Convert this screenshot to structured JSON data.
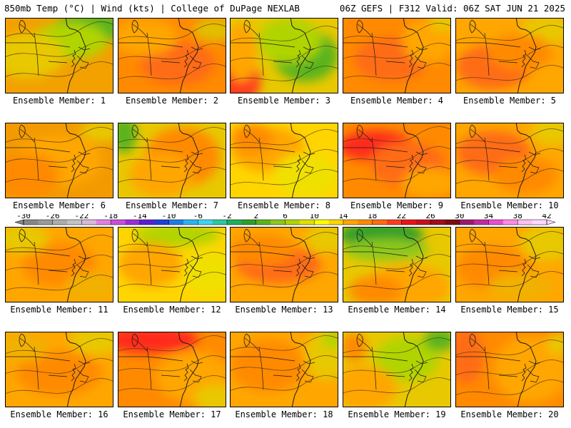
{
  "header": {
    "left": "850mb Temp (°C) | Wind (kts) | College of DuPage NEXLAB",
    "right": "06Z GEFS | F312 Valid: 06Z SAT JUN 21 2025"
  },
  "member_label_prefix": "Ensemble Member: ",
  "members": [
    {
      "label": "Ensemble Member: 1",
      "base": "#f2a100",
      "blobs": [
        [
          "#5ab41e",
          0.78,
          0.12,
          0.32,
          0.22
        ],
        [
          "#b0d400",
          0.6,
          0.3,
          0.35,
          0.25
        ],
        [
          "#e8c800",
          0.2,
          0.5,
          0.35,
          0.3
        ]
      ]
    },
    {
      "label": "Ensemble Member: 2",
      "base": "#ff8a00",
      "blobs": [
        [
          "#ff6c12",
          0.55,
          0.6,
          0.35,
          0.3
        ],
        [
          "#ffa600",
          0.25,
          0.25,
          0.3,
          0.25
        ],
        [
          "#e0c000",
          0.9,
          0.15,
          0.2,
          0.15
        ]
      ]
    },
    {
      "label": "Ensemble Member: 3",
      "base": "#e8c800",
      "blobs": [
        [
          "#5ab41e",
          0.7,
          0.5,
          0.3,
          0.35
        ],
        [
          "#b0d400",
          0.55,
          0.3,
          0.3,
          0.3
        ],
        [
          "#ff3d1e",
          0.08,
          0.85,
          0.2,
          0.3
        ],
        [
          "#ffa600",
          0.1,
          0.45,
          0.15,
          0.4
        ]
      ]
    },
    {
      "label": "Ensemble Member: 4",
      "base": "#ff8a00",
      "blobs": [
        [
          "#ff6c12",
          0.45,
          0.55,
          0.35,
          0.3
        ],
        [
          "#ffa600",
          0.8,
          0.3,
          0.25,
          0.3
        ],
        [
          "#e8c800",
          0.95,
          0.05,
          0.15,
          0.12
        ]
      ]
    },
    {
      "label": "Ensemble Member: 5",
      "base": "#ffa600",
      "blobs": [
        [
          "#ff6c12",
          0.35,
          0.65,
          0.35,
          0.3
        ],
        [
          "#e8c800",
          0.85,
          0.15,
          0.25,
          0.2
        ],
        [
          "#ff8a00",
          0.6,
          0.45,
          0.3,
          0.25
        ]
      ]
    },
    {
      "label": "Ensemble Member: 6",
      "base": "#f29a00",
      "blobs": [
        [
          "#ffa600",
          0.5,
          0.5,
          0.4,
          0.35
        ],
        [
          "#e8c800",
          0.9,
          0.1,
          0.2,
          0.15
        ],
        [
          "#ff8a00",
          0.2,
          0.7,
          0.3,
          0.3
        ]
      ]
    },
    {
      "label": "Ensemble Member: 7",
      "base": "#e8c800",
      "blobs": [
        [
          "#5ab41e",
          0.05,
          0.15,
          0.12,
          0.25
        ],
        [
          "#ff8a00",
          0.6,
          0.45,
          0.35,
          0.4
        ],
        [
          "#ffa600",
          0.4,
          0.7,
          0.3,
          0.3
        ]
      ]
    },
    {
      "label": "Ensemble Member: 8",
      "base": "#ffd500",
      "blobs": [
        [
          "#ffa600",
          0.35,
          0.35,
          0.35,
          0.3
        ],
        [
          "#f0e000",
          0.7,
          0.7,
          0.3,
          0.3
        ],
        [
          "#ff8a00",
          0.2,
          0.2,
          0.2,
          0.2
        ]
      ]
    },
    {
      "label": "Ensemble Member: 9",
      "base": "#ff8a00",
      "blobs": [
        [
          "#ff2a1a",
          0.3,
          0.3,
          0.35,
          0.2
        ],
        [
          "#ff6c12",
          0.6,
          0.55,
          0.35,
          0.3
        ],
        [
          "#ffa600",
          0.8,
          0.8,
          0.25,
          0.2
        ]
      ]
    },
    {
      "label": "Ensemble Member: 10",
      "base": "#ffa600",
      "blobs": [
        [
          "#ff6c12",
          0.35,
          0.4,
          0.35,
          0.3
        ],
        [
          "#e8c800",
          0.9,
          0.1,
          0.2,
          0.2
        ],
        [
          "#ff8a00",
          0.65,
          0.7,
          0.3,
          0.25
        ]
      ]
    },
    {
      "label": "Ensemble Member: 11",
      "base": "#ffa600",
      "blobs": [
        [
          "#ff8a00",
          0.5,
          0.5,
          0.35,
          0.3
        ],
        [
          "#e8c800",
          0.15,
          0.15,
          0.25,
          0.2
        ],
        [
          "#f2b000",
          0.8,
          0.8,
          0.25,
          0.2
        ]
      ]
    },
    {
      "label": "Ensemble Member: 12",
      "base": "#ffd500",
      "blobs": [
        [
          "#b0d400",
          0.55,
          0.1,
          0.4,
          0.15
        ],
        [
          "#ffa600",
          0.3,
          0.5,
          0.3,
          0.3
        ],
        [
          "#f0e000",
          0.85,
          0.6,
          0.25,
          0.3
        ]
      ]
    },
    {
      "label": "Ensemble Member: 13",
      "base": "#ffa600",
      "blobs": [
        [
          "#ff6c12",
          0.45,
          0.5,
          0.4,
          0.25
        ],
        [
          "#e8c800",
          0.9,
          0.15,
          0.2,
          0.2
        ],
        [
          "#ff8a00",
          0.3,
          0.3,
          0.3,
          0.2
        ]
      ]
    },
    {
      "label": "Ensemble Member: 14",
      "base": "#e8c800",
      "blobs": [
        [
          "#2f9e2a",
          0.35,
          0.1,
          0.4,
          0.18
        ],
        [
          "#8cc81e",
          0.4,
          0.3,
          0.4,
          0.15
        ],
        [
          "#ffa600",
          0.6,
          0.8,
          0.4,
          0.3
        ],
        [
          "#ff8a00",
          0.3,
          0.85,
          0.25,
          0.2
        ]
      ]
    },
    {
      "label": "Ensemble Member: 15",
      "base": "#ffa600",
      "blobs": [
        [
          "#e8c800",
          0.85,
          0.2,
          0.25,
          0.25
        ],
        [
          "#ff8a00",
          0.35,
          0.55,
          0.35,
          0.3
        ],
        [
          "#f2b000",
          0.6,
          0.8,
          0.3,
          0.2
        ]
      ]
    },
    {
      "label": "Ensemble Member: 16",
      "base": "#ffa600",
      "blobs": [
        [
          "#ff8a00",
          0.5,
          0.55,
          0.4,
          0.3
        ],
        [
          "#e8c800",
          0.85,
          0.1,
          0.25,
          0.2
        ],
        [
          "#f2b000",
          0.15,
          0.2,
          0.25,
          0.2
        ]
      ]
    },
    {
      "label": "Ensemble Member: 17",
      "base": "#ff8a00",
      "blobs": [
        [
          "#ff2a1a",
          0.3,
          0.1,
          0.45,
          0.18
        ],
        [
          "#ffa600",
          0.7,
          0.6,
          0.35,
          0.35
        ],
        [
          "#e8c800",
          0.9,
          0.9,
          0.2,
          0.2
        ]
      ]
    },
    {
      "label": "Ensemble Member: 18",
      "base": "#ffa600",
      "blobs": [
        [
          "#ff8a00",
          0.35,
          0.45,
          0.35,
          0.35
        ],
        [
          "#e8c800",
          0.9,
          0.3,
          0.2,
          0.35
        ],
        [
          "#b0d400",
          0.95,
          0.1,
          0.1,
          0.12
        ]
      ]
    },
    {
      "label": "Ensemble Member: 19",
      "base": "#e8c800",
      "blobs": [
        [
          "#b0d400",
          0.6,
          0.35,
          0.3,
          0.3
        ],
        [
          "#5ab41e",
          0.9,
          0.1,
          0.15,
          0.15
        ],
        [
          "#ffa600",
          0.2,
          0.75,
          0.3,
          0.3
        ],
        [
          "#ff8a00",
          0.1,
          0.2,
          0.12,
          0.2
        ]
      ]
    },
    {
      "label": "Ensemble Member: 20",
      "base": "#ff8a00",
      "blobs": [
        [
          "#ffa600",
          0.7,
          0.5,
          0.35,
          0.45
        ],
        [
          "#ff6c12",
          0.1,
          0.3,
          0.15,
          0.4
        ],
        [
          "#e8c800",
          0.95,
          0.15,
          0.1,
          0.15
        ]
      ]
    }
  ],
  "colorbar": {
    "labels": [
      "-30",
      "-26",
      "-22",
      "-18",
      "-14",
      "-10",
      "-6",
      "-2",
      "2",
      "6",
      "10",
      "14",
      "18",
      "22",
      "26",
      "30",
      "34",
      "38",
      "42"
    ],
    "colors": [
      "#878787",
      "#9a9a9a",
      "#adadad",
      "#c4c4c4",
      "#d9b8d9",
      "#e27fe2",
      "#c84fd8",
      "#9a2fd6",
      "#5a1fd0",
      "#1d3fd4",
      "#1f7de2",
      "#2ab4ec",
      "#3fd4f0",
      "#2fc6a0",
      "#1fae5a",
      "#2f9e2a",
      "#5ab41e",
      "#8cc81e",
      "#b0d400",
      "#dfe200",
      "#ffff00",
      "#ffd500",
      "#ffa600",
      "#ff8a00",
      "#ff6c12",
      "#ff3d1e",
      "#e8141a",
      "#c8101a",
      "#a00e1a",
      "#7a0c12",
      "#9c1a6e",
      "#c42aa0",
      "#e84ed0",
      "#ff8ae6",
      "#ffc0f2",
      "#ffd8ff"
    ]
  }
}
